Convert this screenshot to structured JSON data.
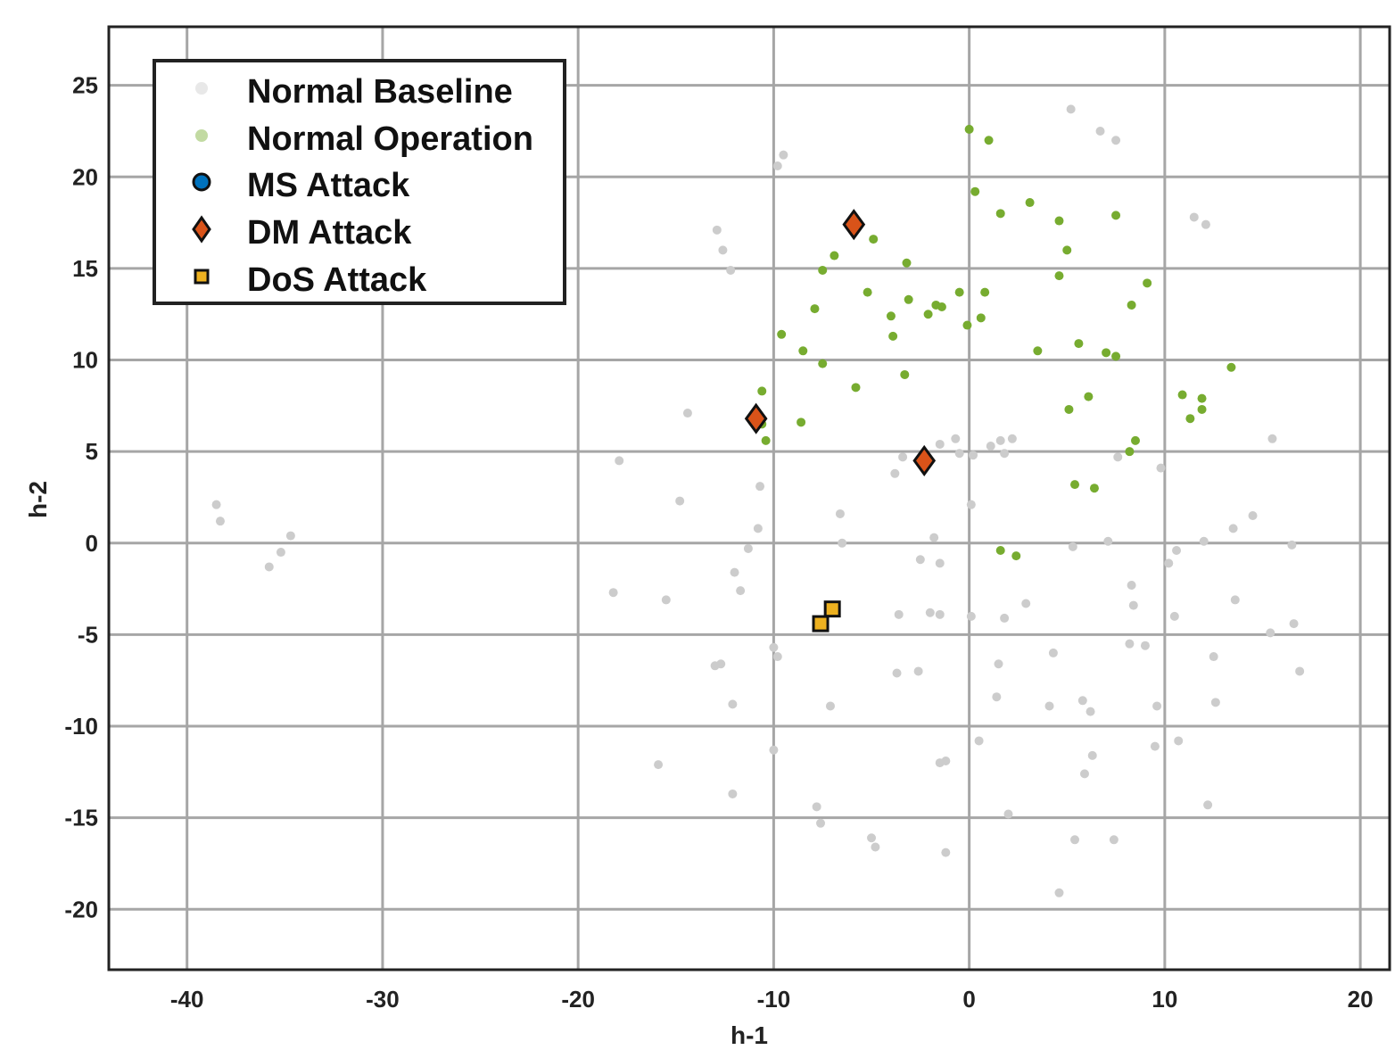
{
  "chart_data": {
    "type": "scatter",
    "xlabel": "h-1",
    "ylabel": "h-2",
    "xlim": [
      -44,
      21.5
    ],
    "ylim": [
      -23.3,
      28.2
    ],
    "grid": true,
    "legend_position": "top-left",
    "x_ticks": [
      -40,
      -30,
      -20,
      -10,
      0,
      10,
      20
    ],
    "x_tick_labels": [
      "-40",
      "-30",
      "-20",
      "-10",
      "0",
      "10",
      "20"
    ],
    "y_ticks": [
      -20,
      -15,
      -10,
      -5,
      0,
      5,
      10,
      15,
      20,
      25
    ],
    "y_tick_labels": [
      "-20",
      "-15",
      "-10",
      "-5",
      "0",
      "5",
      "10",
      "15",
      "20",
      "25"
    ],
    "series": [
      {
        "name": "Normal Baseline",
        "marker": "dot",
        "color": "#cccccc",
        "points": [
          [
            -38.5,
            2.1
          ],
          [
            -38.3,
            1.2
          ],
          [
            -35.8,
            -1.3
          ],
          [
            -35.2,
            -0.5
          ],
          [
            -34.7,
            0.4
          ],
          [
            -18.2,
            -2.7
          ],
          [
            -17.9,
            4.5
          ],
          [
            -15.9,
            -12.1
          ],
          [
            -15.5,
            -3.1
          ],
          [
            -14.8,
            2.3
          ],
          [
            -14.4,
            7.1
          ],
          [
            -13.0,
            -6.7
          ],
          [
            -12.9,
            17.1
          ],
          [
            -12.6,
            16.0
          ],
          [
            -12.2,
            14.9
          ],
          [
            -12.7,
            -6.6
          ],
          [
            -12.1,
            -8.8
          ],
          [
            -12.1,
            -13.7
          ],
          [
            -12.0,
            -1.6
          ],
          [
            -11.7,
            -2.6
          ],
          [
            -11.3,
            -0.3
          ],
          [
            -10.8,
            0.8
          ],
          [
            -10.7,
            3.1
          ],
          [
            -10.0,
            -5.7
          ],
          [
            -9.8,
            -6.2
          ],
          [
            -10.0,
            -11.3
          ],
          [
            -9.5,
            21.2
          ],
          [
            -9.8,
            20.6
          ],
          [
            -7.8,
            -14.4
          ],
          [
            -7.6,
            -15.3
          ],
          [
            -7.1,
            -8.9
          ],
          [
            -6.6,
            1.6
          ],
          [
            -6.5,
            0.0
          ],
          [
            -5.0,
            -16.1
          ],
          [
            -4.8,
            -16.6
          ],
          [
            -3.7,
            -7.1
          ],
          [
            -2.6,
            -7.0
          ],
          [
            -3.8,
            3.8
          ],
          [
            -3.4,
            4.7
          ],
          [
            -3.6,
            -3.9
          ],
          [
            -2.0,
            -3.8
          ],
          [
            -1.5,
            -3.9
          ],
          [
            -2.5,
            -0.9
          ],
          [
            -1.8,
            0.3
          ],
          [
            -1.5,
            -1.1
          ],
          [
            -1.5,
            -12.0
          ],
          [
            -1.2,
            -11.9
          ],
          [
            -1.2,
            -16.9
          ],
          [
            -1.5,
            5.4
          ],
          [
            -0.7,
            5.7
          ],
          [
            -0.5,
            4.9
          ],
          [
            0.1,
            -4.0
          ],
          [
            1.8,
            -4.1
          ],
          [
            0.2,
            4.8
          ],
          [
            1.1,
            5.3
          ],
          [
            1.6,
            5.6
          ],
          [
            1.8,
            4.9
          ],
          [
            2.2,
            5.7
          ],
          [
            0.5,
            -10.8
          ],
          [
            0.1,
            2.1
          ],
          [
            1.4,
            -8.4
          ],
          [
            1.5,
            -6.6
          ],
          [
            2.0,
            -14.8
          ],
          [
            2.9,
            -3.3
          ],
          [
            4.1,
            -8.9
          ],
          [
            4.3,
            -6.0
          ],
          [
            4.6,
            -19.1
          ],
          [
            5.3,
            -0.2
          ],
          [
            5.4,
            -16.2
          ],
          [
            5.2,
            23.7
          ],
          [
            6.7,
            22.5
          ],
          [
            7.5,
            22.0
          ],
          [
            5.8,
            -8.6
          ],
          [
            6.2,
            -9.2
          ],
          [
            6.3,
            -11.6
          ],
          [
            5.9,
            -12.6
          ],
          [
            7.4,
            -16.2
          ],
          [
            7.6,
            4.7
          ],
          [
            7.1,
            0.1
          ],
          [
            8.2,
            -5.5
          ],
          [
            8.3,
            -2.3
          ],
          [
            8.4,
            -3.4
          ],
          [
            9.0,
            -5.6
          ],
          [
            9.6,
            -8.9
          ],
          [
            9.5,
            -11.1
          ],
          [
            9.8,
            4.1
          ],
          [
            10.2,
            -1.1
          ],
          [
            10.6,
            -0.4
          ],
          [
            12.0,
            0.1
          ],
          [
            10.5,
            -4.0
          ],
          [
            10.7,
            -10.8
          ],
          [
            11.5,
            17.8
          ],
          [
            12.1,
            17.4
          ],
          [
            12.5,
            -6.2
          ],
          [
            12.6,
            -8.7
          ],
          [
            12.2,
            -14.3
          ],
          [
            13.6,
            -3.1
          ],
          [
            13.5,
            0.8
          ],
          [
            14.5,
            1.5
          ],
          [
            15.5,
            5.7
          ],
          [
            15.4,
            -4.9
          ],
          [
            16.5,
            -0.1
          ],
          [
            16.6,
            -4.4
          ],
          [
            16.9,
            -7.0
          ]
        ]
      },
      {
        "name": "Normal Operation",
        "marker": "dot",
        "color": "#77ac30",
        "points": [
          [
            0.0,
            22.6
          ],
          [
            1.0,
            22.0
          ],
          [
            0.3,
            19.2
          ],
          [
            1.6,
            18.0
          ],
          [
            3.1,
            18.6
          ],
          [
            4.6,
            17.6
          ],
          [
            5.0,
            16.0
          ],
          [
            4.6,
            14.6
          ],
          [
            7.5,
            17.9
          ],
          [
            8.3,
            13.0
          ],
          [
            7.5,
            10.2
          ],
          [
            6.1,
            8.0
          ],
          [
            5.1,
            7.3
          ],
          [
            3.5,
            10.5
          ],
          [
            5.6,
            10.9
          ],
          [
            7.0,
            10.4
          ],
          [
            9.1,
            14.2
          ],
          [
            10.9,
            8.1
          ],
          [
            11.9,
            7.9
          ],
          [
            13.4,
            9.6
          ],
          [
            11.3,
            6.8
          ],
          [
            11.9,
            7.3
          ],
          [
            8.2,
            5.0
          ],
          [
            8.5,
            5.6
          ],
          [
            5.4,
            3.2
          ],
          [
            6.4,
            3.0
          ],
          [
            1.6,
            -0.4
          ],
          [
            2.4,
            -0.7
          ],
          [
            -0.5,
            13.7
          ],
          [
            -1.7,
            13.0
          ],
          [
            -3.2,
            15.3
          ],
          [
            -4.9,
            16.6
          ],
          [
            -5.8,
            17.3
          ],
          [
            -6.9,
            15.7
          ],
          [
            -7.5,
            14.9
          ],
          [
            -7.9,
            12.8
          ],
          [
            -5.2,
            13.7
          ],
          [
            -4.0,
            12.4
          ],
          [
            -3.9,
            11.3
          ],
          [
            -3.3,
            9.2
          ],
          [
            -5.8,
            8.5
          ],
          [
            -7.5,
            9.8
          ],
          [
            -9.6,
            11.4
          ],
          [
            -8.5,
            10.5
          ],
          [
            -10.6,
            8.3
          ],
          [
            -10.6,
            6.5
          ],
          [
            -8.6,
            6.6
          ],
          [
            -10.4,
            5.6
          ],
          [
            -1.4,
            12.9
          ],
          [
            0.6,
            12.3
          ],
          [
            0.8,
            13.7
          ],
          [
            -0.1,
            11.9
          ],
          [
            -2.1,
            12.5
          ],
          [
            -3.1,
            13.3
          ]
        ]
      },
      {
        "name": "MS Attack",
        "marker": "circle",
        "color": "#0072bd",
        "points": []
      },
      {
        "name": "DM Attack",
        "marker": "diamond",
        "color": "#d95319",
        "points": [
          [
            -5.9,
            17.4
          ],
          [
            -10.9,
            6.8
          ],
          [
            -2.3,
            4.5
          ]
        ]
      },
      {
        "name": "DoS Attack",
        "marker": "square",
        "color": "#edb120",
        "points": [
          [
            -7.6,
            -4.4
          ],
          [
            -7.0,
            -3.6
          ]
        ]
      }
    ]
  }
}
